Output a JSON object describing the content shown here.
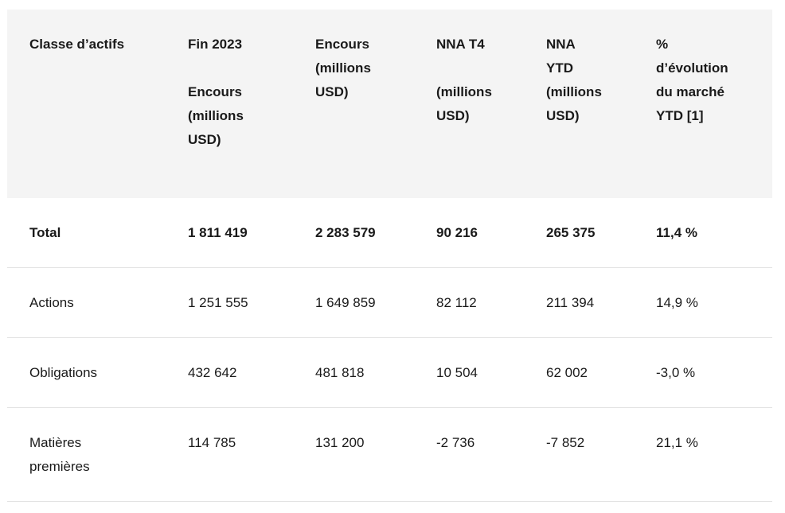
{
  "headers": [
    "Classe d’actifs",
    "Fin 2023\n\nEncours\n(millions\nUSD)",
    "Encours\n(millions\nUSD)",
    "NNA T4\n\n(millions\nUSD)",
    "NNA\nYTD\n(millions\nUSD)",
    "%\nd’évolution\ndu marché\nYTD [1]"
  ],
  "rows": [
    [
      "Total",
      "1 811 419",
      "2 283 579",
      "90 216",
      "265 375",
      "11,4 %"
    ],
    [
      "Actions",
      "1 251 555",
      "1 649 859",
      "82 112",
      "211 394",
      "14,9 %"
    ],
    [
      "Obligations",
      "432 642",
      "481 818",
      "10 504",
      "62 002",
      "-3,0 %"
    ],
    [
      "Matières\npremières",
      "114 785",
      "131 200",
      "-2 736",
      "-7 852",
      "21,1 %"
    ]
  ],
  "colors": {
    "header_bg": "#f4f4f4",
    "text": "#1a1a1a",
    "divider": "#e3e3e3"
  }
}
